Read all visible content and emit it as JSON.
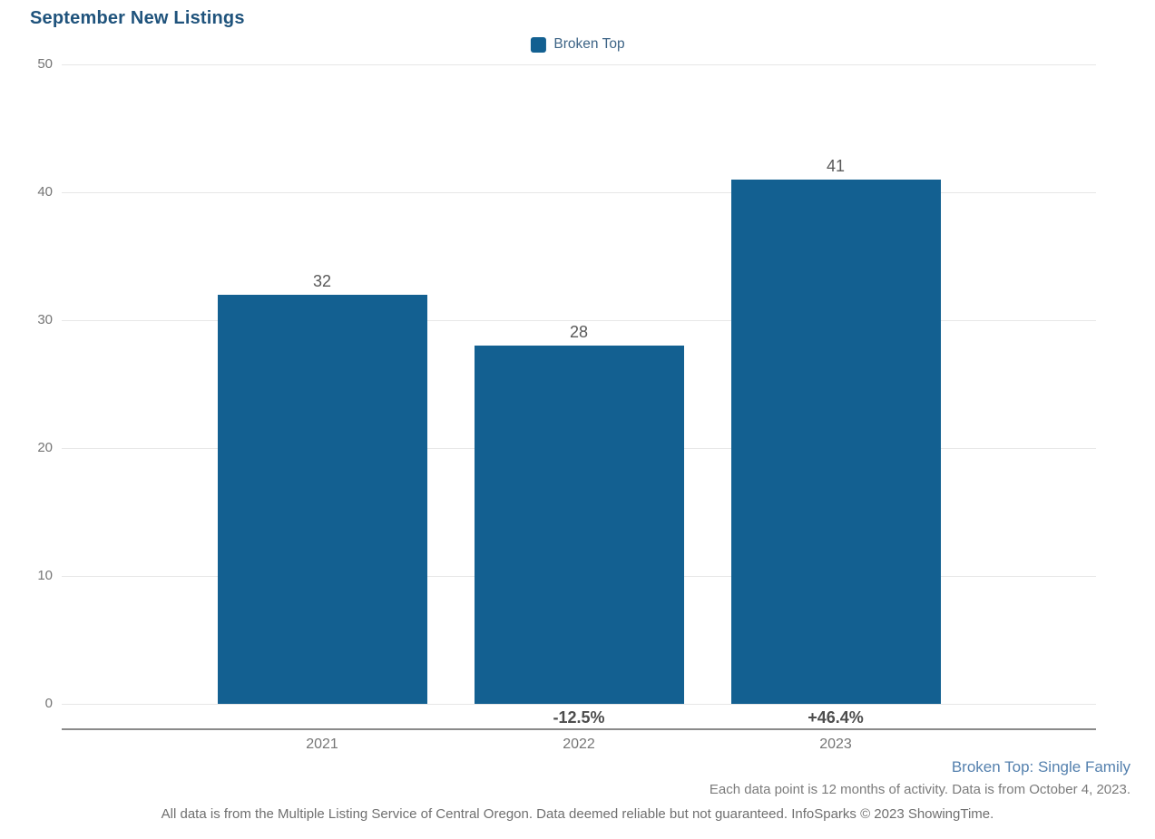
{
  "title": "September New Listings",
  "legend": {
    "label": "Broken Top",
    "swatch_color": "#136091"
  },
  "chart_data": {
    "type": "bar",
    "title": "September New Listings",
    "categories": [
      "2021",
      "2022",
      "2023"
    ],
    "series": [
      {
        "name": "Broken Top",
        "values": [
          32,
          28,
          41
        ],
        "color": "#136091"
      }
    ],
    "value_labels": [
      "32",
      "28",
      "41"
    ],
    "pct_change_labels": [
      "",
      "-12.5%",
      "+46.4%"
    ],
    "xlabel": "",
    "ylabel": "",
    "ylim": [
      0,
      50
    ],
    "yticks": [
      0,
      10,
      20,
      30,
      40,
      50
    ],
    "grid": true,
    "legend_position": "top-center"
  },
  "footer": {
    "series_note": "Broken Top: Single Family",
    "data_note": "Each data point is 12 months of activity. Data is from October 4, 2023.",
    "disclaimer": "All data is from the Multiple Listing Service of Central Oregon. Data deemed reliable but not guaranteed. InfoSparks © 2023 ShowingTime."
  },
  "colors": {
    "bar_blue": "#136091",
    "title_navy": "#1f537c",
    "legend_text_blue": "#3d6486",
    "series_note_blue": "#5581ae",
    "gridline_gray": "#e7e7e7",
    "axis_line_gray": "#8a8a8a",
    "tick_text_gray": "#757575",
    "value_text_gray": "#595959",
    "pct_text_gray": "#4d4d4d"
  }
}
